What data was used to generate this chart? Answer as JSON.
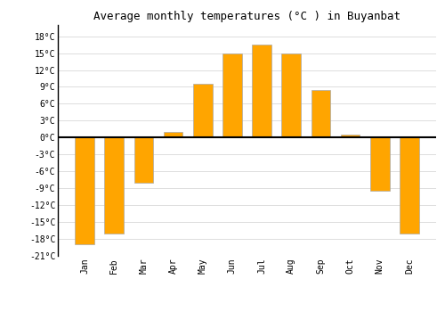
{
  "title": "Average monthly temperatures (°C ) in Buyanbat",
  "months": [
    "Jan",
    "Feb",
    "Mar",
    "Apr",
    "May",
    "Jun",
    "Jul",
    "Aug",
    "Sep",
    "Oct",
    "Nov",
    "Dec"
  ],
  "values": [
    -19,
    -17,
    -8,
    1,
    9.5,
    15,
    16.5,
    15,
    8.5,
    0.5,
    -9.5,
    -17
  ],
  "bar_color": "#FFA500",
  "bar_edge_color": "#aaaaaa",
  "ylim": [
    -21,
    20
  ],
  "yticks": [
    -21,
    -18,
    -15,
    -12,
    -9,
    -6,
    -3,
    0,
    3,
    6,
    9,
    12,
    15,
    18
  ],
  "ytick_labels": [
    "-21°C",
    "-18°C",
    "-15°C",
    "-12°C",
    "-9°C",
    "-6°C",
    "-3°C",
    "0°C",
    "3°C",
    "6°C",
    "9°C",
    "12°C",
    "15°C",
    "18°C"
  ],
  "grid_color": "#dddddd",
  "background_color": "#ffffff",
  "zero_line_color": "#000000",
  "title_fontsize": 9,
  "tick_fontsize": 7,
  "bar_width": 0.65
}
